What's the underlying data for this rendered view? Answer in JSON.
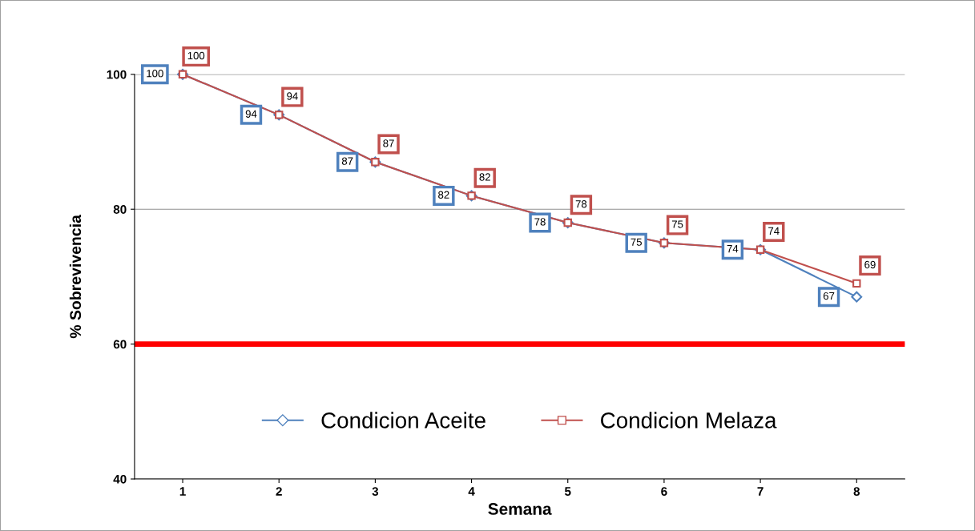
{
  "chart_data": {
    "type": "line",
    "xlabel": "Semana",
    "ylabel": "% Sobrevivencia",
    "categories": [
      "1",
      "2",
      "3",
      "4",
      "5",
      "6",
      "7",
      "8"
    ],
    "series": [
      {
        "name": "Condicion Aceite",
        "color": "#4f81bd",
        "marker": "diamond",
        "values": [
          100,
          94,
          87,
          82,
          78,
          75,
          74,
          67
        ]
      },
      {
        "name": "Condicion Melaza",
        "color": "#c0504d",
        "marker": "square",
        "values": [
          100,
          94,
          87,
          82,
          78,
          75,
          74,
          69
        ]
      }
    ],
    "ylim": [
      40,
      100
    ],
    "yticks": [
      40,
      60,
      80,
      100
    ],
    "grid": "y",
    "legend": "bottom",
    "data_labels": true,
    "line_style": "solid",
    "ref_lines": [
      {
        "axis": "y",
        "value": 60,
        "label": null,
        "color": "#ff0000"
      }
    ]
  }
}
